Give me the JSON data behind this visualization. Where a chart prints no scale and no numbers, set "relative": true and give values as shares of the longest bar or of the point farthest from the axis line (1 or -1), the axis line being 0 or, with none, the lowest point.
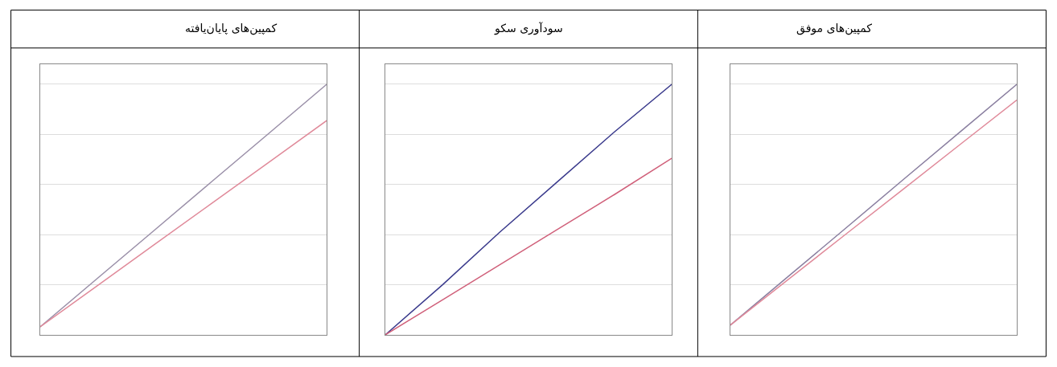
{
  "chart_data": [
    {
      "type": "line",
      "title": "کمپین‌های موفق",
      "relative": true,
      "grid": true,
      "categories": [
        null,
        null,
        null,
        null,
        null,
        null
      ],
      "series": [
        {
          "color": "#8a7fa0",
          "values": [
            0.039,
            0.231,
            0.423,
            0.616,
            0.808,
            1.0
          ]
        },
        {
          "color": "#e08a9a",
          "values": [
            0.039,
            0.219,
            0.399,
            0.578,
            0.758,
            0.937
          ]
        }
      ]
    },
    {
      "type": "line",
      "title": "سودآوری سکو",
      "relative": true,
      "grid": true,
      "categories": [
        null,
        null,
        null,
        null,
        null,
        null
      ],
      "series": [
        {
          "color": "#3a3a8c",
          "values": [
            0,
            0.2,
            0.41,
            0.61,
            0.81,
            1.0
          ]
        },
        {
          "color": "#d0607a",
          "values": [
            0,
            0.14,
            0.28,
            0.42,
            0.56,
            0.705
          ]
        }
      ]
    },
    {
      "type": "line",
      "title": "کمپین‌های پایان‌یافته",
      "relative": true,
      "grid": true,
      "categories": [
        null,
        null,
        null,
        null,
        null,
        null
      ],
      "series": [
        {
          "color": "#9a8fa8",
          "values": [
            0.032,
            0.226,
            0.419,
            0.613,
            0.806,
            1.0
          ]
        },
        {
          "color": "#e08a9a",
          "values": [
            0.032,
            0.197,
            0.362,
            0.526,
            0.69,
            0.855
          ]
        }
      ]
    }
  ]
}
